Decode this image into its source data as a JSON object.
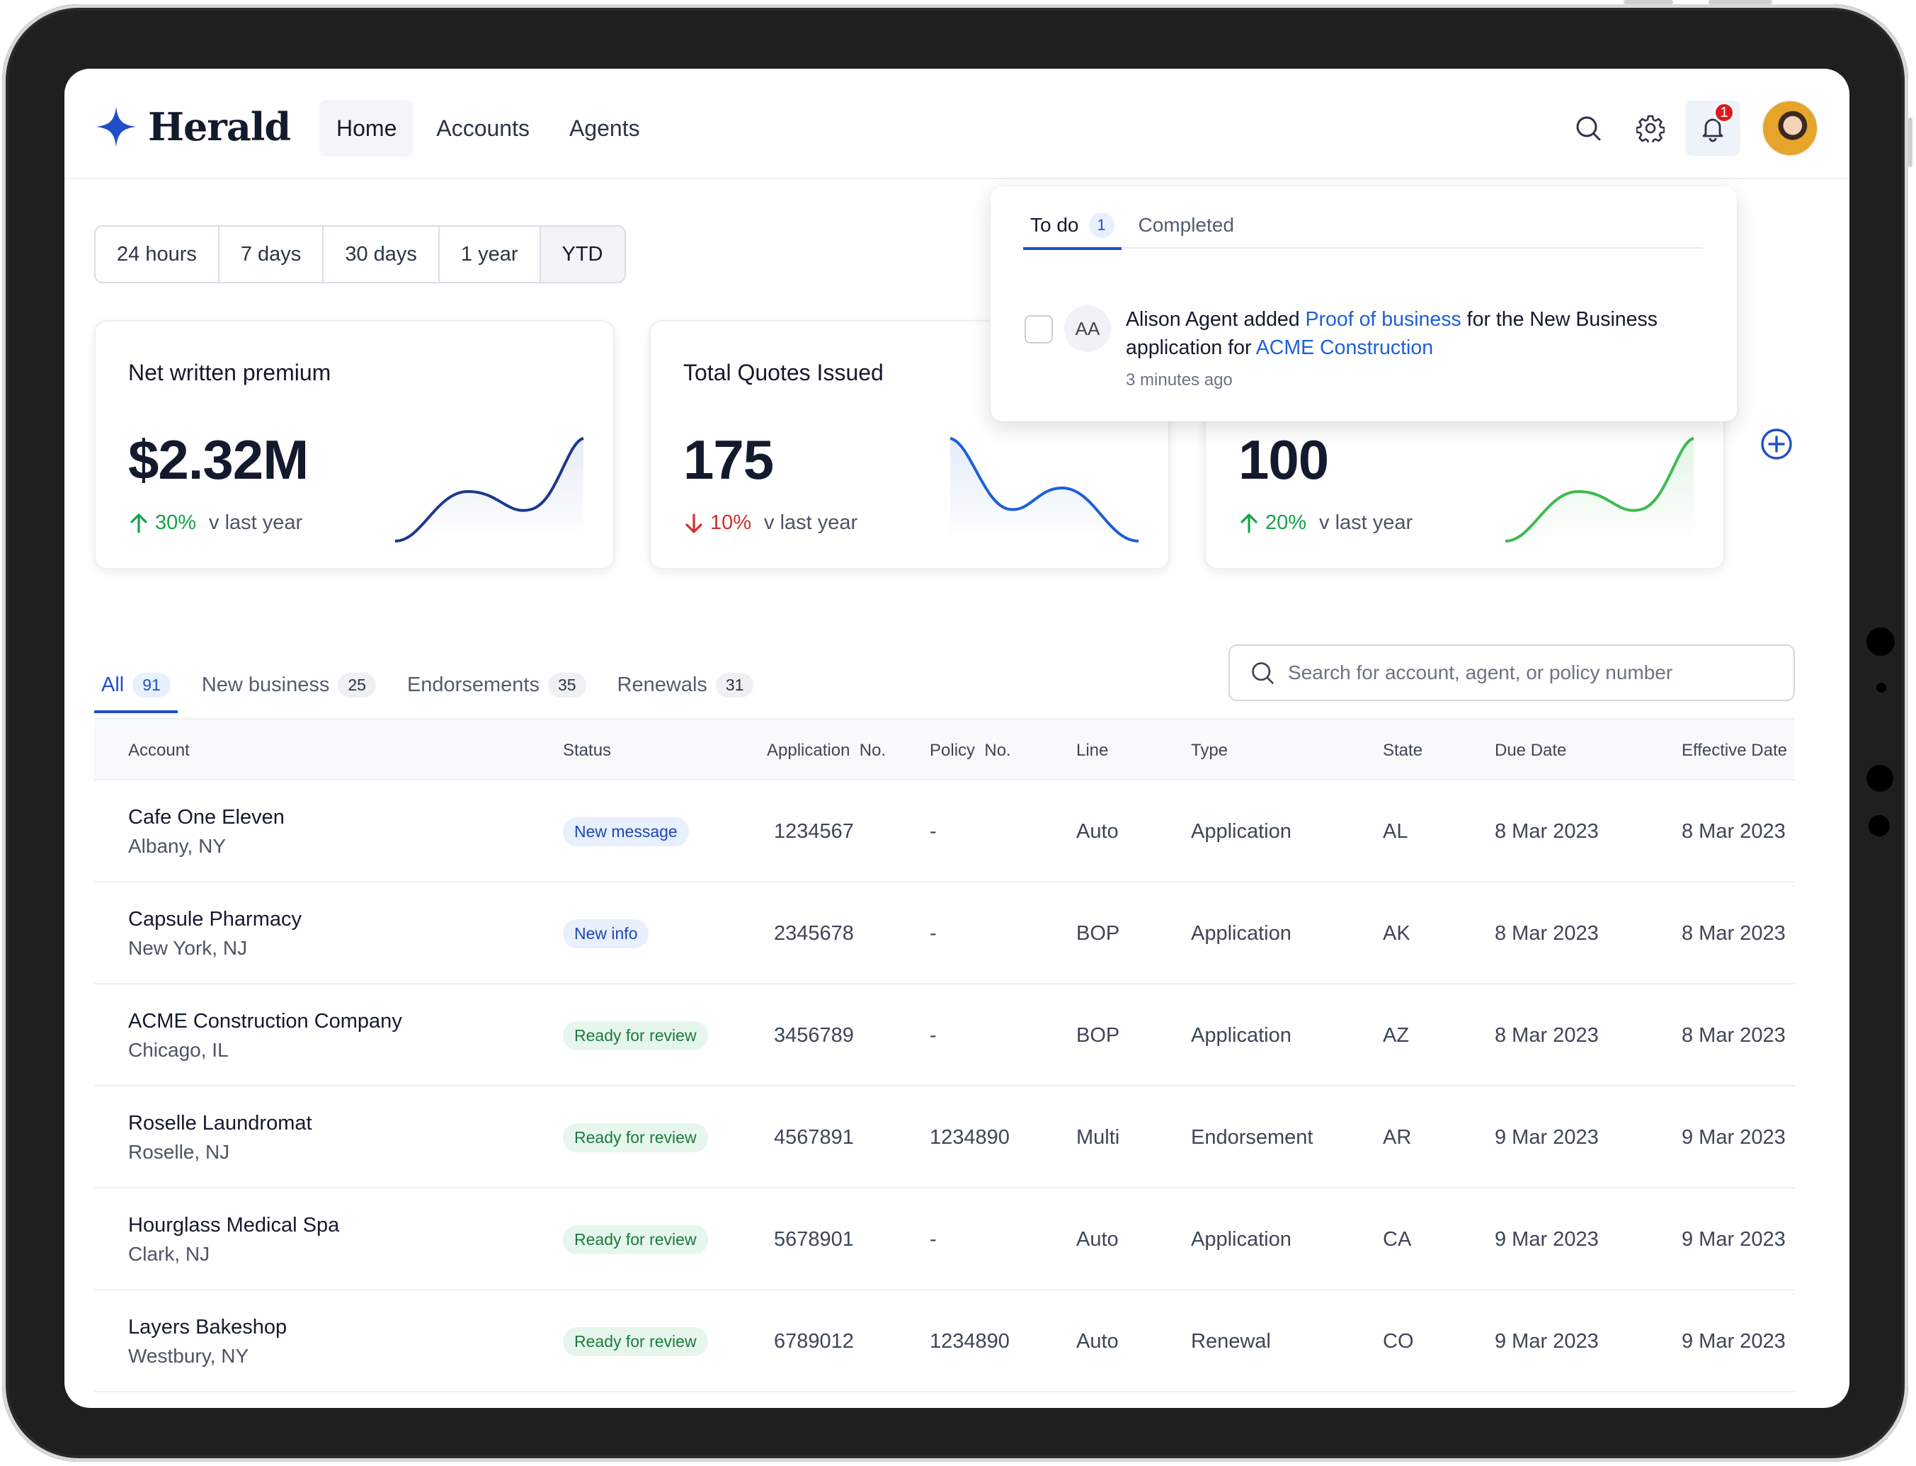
{
  "app": {
    "logo_text": "Herald",
    "brand_color": "#1e4fc8"
  },
  "nav": {
    "items": [
      {
        "label": "Home",
        "active": true
      },
      {
        "label": "Accounts",
        "active": false
      },
      {
        "label": "Agents",
        "active": false
      }
    ]
  },
  "header": {
    "icons": [
      "search-icon",
      "gear-icon",
      "bell-icon"
    ],
    "notification_count": "1"
  },
  "period": {
    "options": [
      "24 hours",
      "7 days",
      "30 days",
      "1 year",
      "YTD"
    ],
    "selected": "YTD"
  },
  "metrics": [
    {
      "title": "Net written premium",
      "value": "$2.32M",
      "delta": "30%",
      "direction": "up",
      "comparison": "v last year",
      "color": "#1a3a8f"
    },
    {
      "title": "Total Quotes Issued",
      "value": "175",
      "delta": "10%",
      "direction": "down",
      "comparison": "v last year",
      "color": "#1e5fd8"
    },
    {
      "title": "",
      "value": "100",
      "delta": "20%",
      "direction": "up",
      "comparison": "v last year",
      "color": "#3dbb4f"
    }
  ],
  "colors": {
    "up": "#14a34a",
    "down": "#d32f2f"
  },
  "filters": {
    "tabs": [
      {
        "label": "All",
        "count": "91",
        "active": true
      },
      {
        "label": "New business",
        "count": "25",
        "active": false
      },
      {
        "label": "Endorsements",
        "count": "35",
        "active": false
      },
      {
        "label": "Renewals",
        "count": "31",
        "active": false
      }
    ]
  },
  "search": {
    "placeholder": "Search for account, agent, or policy number"
  },
  "table": {
    "columns": [
      "Account",
      "Status",
      "Application  No.",
      "Policy  No.",
      "Line",
      "Type",
      "State",
      "Due Date",
      "Effective Date"
    ],
    "rows": [
      {
        "account": "Cafe One Eleven",
        "location": "Albany, NY",
        "status": "New message",
        "status_kind": "blue",
        "application_no": "1234567",
        "policy_no": "-",
        "line": "Auto",
        "type": "Application",
        "state": "AL",
        "due_date": "8 Mar 2023",
        "effective_date": "8 Mar 2023"
      },
      {
        "account": "Capsule Pharmacy",
        "location": "New York, NJ",
        "status": "New info",
        "status_kind": "blue",
        "application_no": "2345678",
        "policy_no": "-",
        "line": "BOP",
        "type": "Application",
        "state": "AK",
        "due_date": "8 Mar 2023",
        "effective_date": "8 Mar 2023"
      },
      {
        "account": "ACME Construction Company",
        "location": "Chicago, IL",
        "status": "Ready for review",
        "status_kind": "green",
        "application_no": "3456789",
        "policy_no": "-",
        "line": "BOP",
        "type": "Application",
        "state": "AZ",
        "due_date": "8 Mar 2023",
        "effective_date": "8 Mar 2023"
      },
      {
        "account": "Roselle Laundromat",
        "location": "Roselle, NJ",
        "status": "Ready for review",
        "status_kind": "green",
        "application_no": "4567891",
        "policy_no": "1234890",
        "line": "Multi",
        "type": "Endorsement",
        "state": "AR",
        "due_date": "9 Mar 2023",
        "effective_date": "9 Mar 2023"
      },
      {
        "account": "Hourglass Medical Spa",
        "location": "Clark, NJ",
        "status": "Ready for review",
        "status_kind": "green",
        "application_no": "5678901",
        "policy_no": "-",
        "line": "Auto",
        "type": "Application",
        "state": "CA",
        "due_date": "9 Mar 2023",
        "effective_date": "9 Mar 2023"
      },
      {
        "account": "Layers Bakeshop",
        "location": "Westbury, NY",
        "status": "Ready for review",
        "status_kind": "green",
        "application_no": "6789012",
        "policy_no": "1234890",
        "line": "Auto",
        "type": "Renewal",
        "state": "CO",
        "due_date": "9 Mar 2023",
        "effective_date": "9 Mar 2023"
      }
    ]
  },
  "notifications": {
    "tabs": [
      {
        "label": "To do",
        "count": "1",
        "active": true
      },
      {
        "label": "Completed",
        "active": false
      }
    ],
    "item": {
      "initials": "AA",
      "actor": "Alison Agent",
      "verb": " added ",
      "doc_link": "Proof of business",
      "middle": " for the New Business application for ",
      "account_link": "ACME Construction",
      "time": "3 minutes ago"
    }
  }
}
